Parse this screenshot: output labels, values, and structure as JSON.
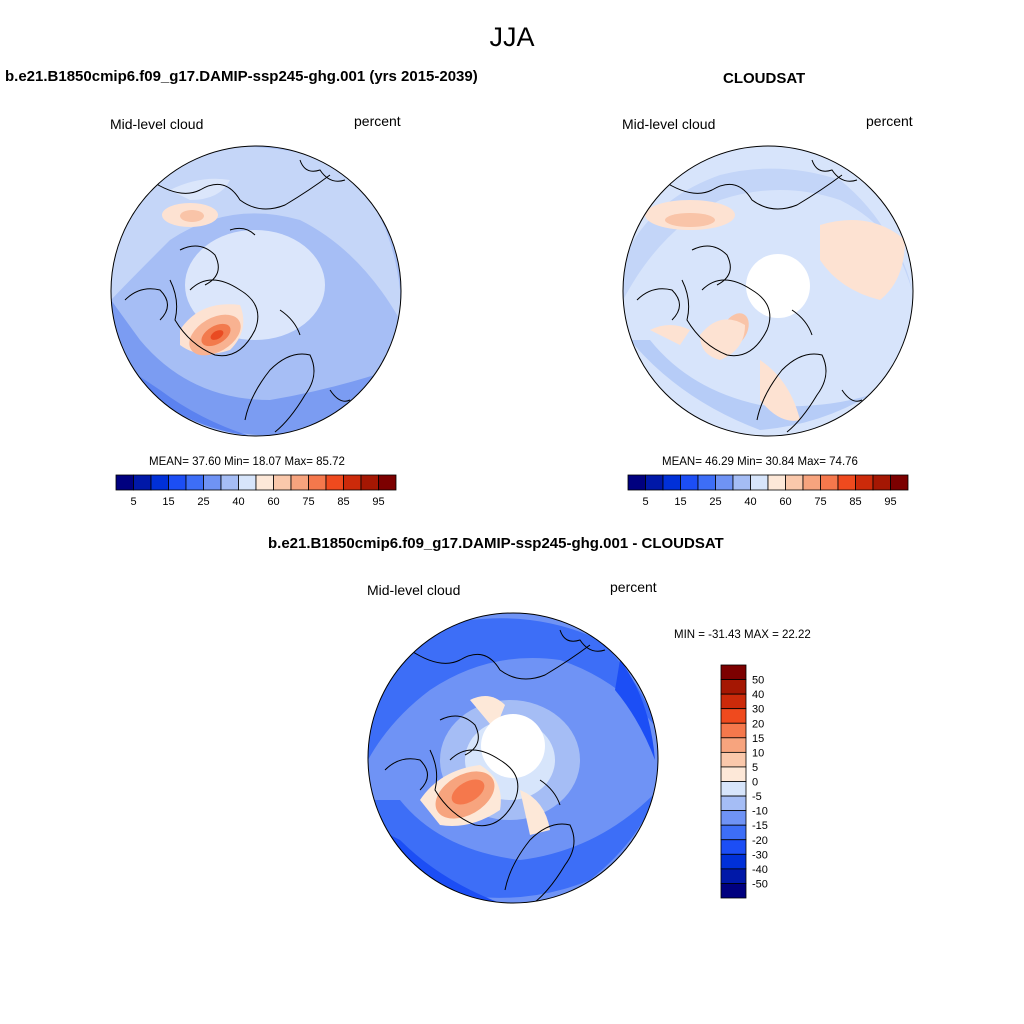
{
  "page_title": "JJA",
  "panels": [
    {
      "title": "b.e21.B1850cmip6.f09_g17.DAMIP-ssp245-ghg.001 (yrs 2015-2039)",
      "left_label": "Mid-level cloud",
      "right_label": "percent",
      "stats": "MEAN=  37.60  Min=  18.07  Max=  85.72"
    },
    {
      "title": "CLOUDSAT",
      "left_label": "Mid-level cloud",
      "right_label": "percent",
      "stats": "MEAN=  46.29  Min=  30.84  Max=  74.76"
    },
    {
      "title": "b.e21.B1850cmip6.f09_g17.DAMIP-ssp245-ghg.001 - CLOUDSAT",
      "left_label": "Mid-level cloud",
      "right_label": "percent",
      "stats": "MIN = -31.43 MAX =  22.22"
    }
  ],
  "colorbar_top": {
    "colors": [
      "#00007f",
      "#0018a8",
      "#0030d8",
      "#1c4ef5",
      "#3d6ef7",
      "#6f93f5",
      "#a5bdf5",
      "#d7e5fb",
      "#fde8d8",
      "#fac8ab",
      "#f7a47e",
      "#f5784c",
      "#ef4a1e",
      "#cc2a0a",
      "#a51703",
      "#7c0000"
    ],
    "labels": [
      "5",
      "15",
      "25",
      "40",
      "60",
      "75",
      "85",
      "95"
    ]
  },
  "colorbar_diff": {
    "colors": [
      "#7c0000",
      "#a51703",
      "#cc2a0a",
      "#ef4a1e",
      "#f5784c",
      "#f7a47e",
      "#fac8ab",
      "#fde8d8",
      "#d7e5fb",
      "#a5bdf5",
      "#6f93f5",
      "#3d6ef7",
      "#1c4ef5",
      "#0030d8",
      "#0018a8",
      "#00007f"
    ],
    "labels": [
      "50",
      "40",
      "30",
      "20",
      "15",
      "10",
      "5",
      "0",
      "-5",
      "-10",
      "-15",
      "-20",
      "-30",
      "-40",
      "-50"
    ]
  },
  "map_colors": {
    "ocean_base_a": "#bcd0f7",
    "ocean_base_b": "#cddcf8",
    "ocean_base_c": "#7d9ef2",
    "pole_hole": "#ffffff",
    "coast": "#000000"
  },
  "legend_style": "labelbar"
}
